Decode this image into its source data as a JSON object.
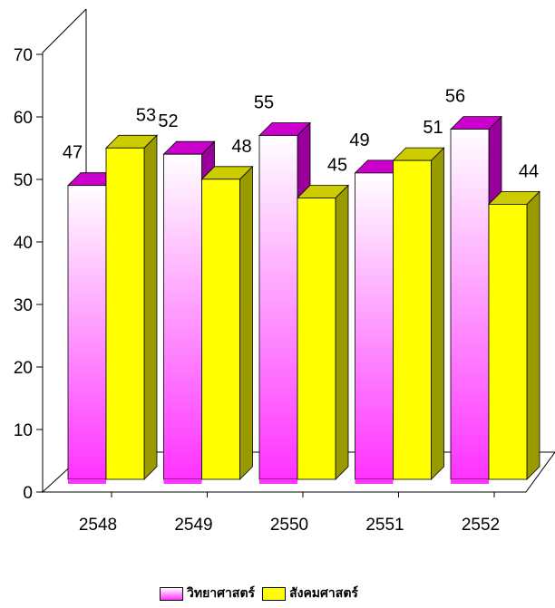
{
  "chart_data": {
    "type": "bar",
    "style": "3d-grouped",
    "categories": [
      "2548",
      "2549",
      "2550",
      "2551",
      "2552"
    ],
    "series": [
      {
        "name": "วิทยาศาสตร์",
        "values": [
          47,
          52,
          55,
          49,
          56
        ],
        "color": "#ff33ff",
        "top_color": "#cc00cc",
        "side_color": "#990099"
      },
      {
        "name": "สังคมศาสตร์",
        "values": [
          53,
          48,
          45,
          51,
          44
        ],
        "color": "#ffff00",
        "top_color": "#cccc00",
        "side_color": "#999900"
      }
    ],
    "ylim": [
      0,
      70
    ],
    "yticks": [
      "0",
      "10",
      "20",
      "30",
      "40",
      "50",
      "60",
      "70"
    ],
    "data_labels": true,
    "legend_position": "bottom",
    "grid": false
  }
}
